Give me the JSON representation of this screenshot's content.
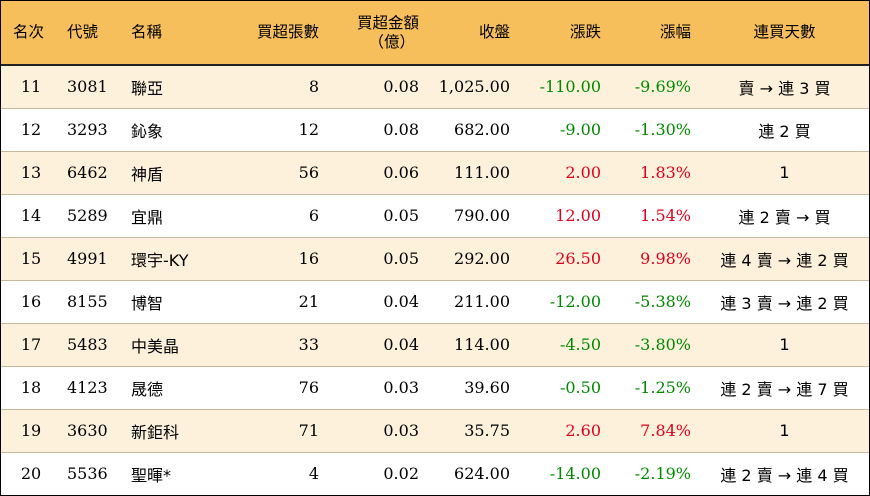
{
  "headers": {
    "rank": "名次",
    "code": "代號",
    "name": "名稱",
    "net_lots": "買超張數",
    "net_amount_line1": "買超金額",
    "net_amount_line2": "（億）",
    "close": "收盤",
    "change": "漲跌",
    "pct": "漲幅",
    "streak": "連買天數"
  },
  "colors": {
    "header_bg": "#f7bf5c",
    "stripe": "#fdf1dc",
    "up": "#e0001b",
    "down": "#008a00"
  },
  "rows": [
    {
      "rank": "11",
      "code": "3081",
      "name": "聯亞",
      "lots": "8",
      "amount": "0.08",
      "close": "1,025.00",
      "change": "-110.00",
      "pct": "-9.69%",
      "dir": "down",
      "streak": "賣 → 連 3 買"
    },
    {
      "rank": "12",
      "code": "3293",
      "name": "鈊象",
      "lots": "12",
      "amount": "0.08",
      "close": "682.00",
      "change": "-9.00",
      "pct": "-1.30%",
      "dir": "down",
      "streak": "連 2 買"
    },
    {
      "rank": "13",
      "code": "6462",
      "name": "神盾",
      "lots": "56",
      "amount": "0.06",
      "close": "111.00",
      "change": "2.00",
      "pct": "1.83%",
      "dir": "up",
      "streak": "1"
    },
    {
      "rank": "14",
      "code": "5289",
      "name": "宜鼎",
      "lots": "6",
      "amount": "0.05",
      "close": "790.00",
      "change": "12.00",
      "pct": "1.54%",
      "dir": "up",
      "streak": "連 2 賣 → 買"
    },
    {
      "rank": "15",
      "code": "4991",
      "name": "環宇-KY",
      "lots": "16",
      "amount": "0.05",
      "close": "292.00",
      "change": "26.50",
      "pct": "9.98%",
      "dir": "up",
      "streak": "連 4 賣 → 連 2 買"
    },
    {
      "rank": "16",
      "code": "8155",
      "name": "博智",
      "lots": "21",
      "amount": "0.04",
      "close": "211.00",
      "change": "-12.00",
      "pct": "-5.38%",
      "dir": "down",
      "streak": "連 3 賣 → 連 2 買"
    },
    {
      "rank": "17",
      "code": "5483",
      "name": "中美晶",
      "lots": "33",
      "amount": "0.04",
      "close": "114.00",
      "change": "-4.50",
      "pct": "-3.80%",
      "dir": "down",
      "streak": "1"
    },
    {
      "rank": "18",
      "code": "4123",
      "name": "晟德",
      "lots": "76",
      "amount": "0.03",
      "close": "39.60",
      "change": "-0.50",
      "pct": "-1.25%",
      "dir": "down",
      "streak": "連 2 賣 → 連 7 買"
    },
    {
      "rank": "19",
      "code": "3630",
      "name": "新鉅科",
      "lots": "71",
      "amount": "0.03",
      "close": "35.75",
      "change": "2.60",
      "pct": "7.84%",
      "dir": "up",
      "streak": "1"
    },
    {
      "rank": "20",
      "code": "5536",
      "name": "聖暉*",
      "lots": "4",
      "amount": "0.02",
      "close": "624.00",
      "change": "-14.00",
      "pct": "-2.19%",
      "dir": "down",
      "streak": "連 2 賣 → 連 4 買"
    }
  ]
}
